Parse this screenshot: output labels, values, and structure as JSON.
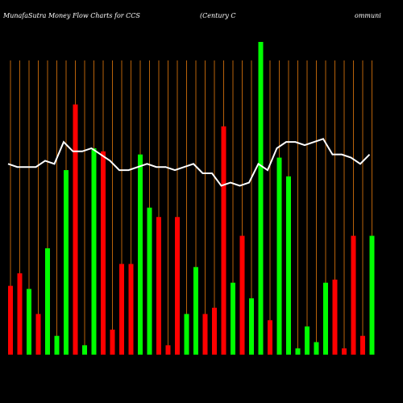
{
  "chart_data": {
    "type": "bar",
    "title": "MunafaSutra  Money Flow  Charts for CCS",
    "subtitle": "(Century C",
    "subtitle_tail": "ommuni",
    "values": [
      22,
      26,
      21,
      13,
      34,
      6,
      59,
      80,
      3,
      66,
      65,
      8,
      29,
      29,
      64,
      47,
      44,
      3,
      44,
      13,
      28,
      13,
      15,
      73,
      23,
      38,
      18,
      100,
      11,
      63,
      57,
      2,
      9,
      4,
      23,
      24,
      2,
      38,
      6,
      38
    ],
    "colors": [
      "#ff0000",
      "#ff0000",
      "#00ff00",
      "#ff0000",
      "#00ff00",
      "#00ff00",
      "#00ff00",
      "#ff0000",
      "#00ff00",
      "#00ff00",
      "#ff0000",
      "#ff0000",
      "#ff0000",
      "#ff0000",
      "#00ff00",
      "#00ff00",
      "#ff0000",
      "#ff0000",
      "#ff0000",
      "#00ff00",
      "#00ff00",
      "#ff0000",
      "#ff0000",
      "#ff0000",
      "#00ff00",
      "#ff0000",
      "#00ff00",
      "#00ff00",
      "#ff0000",
      "#00ff00",
      "#00ff00",
      "#00ff00",
      "#00ff00",
      "#00ff00",
      "#00ff00",
      "#ff0000",
      "#ff0000",
      "#ff0000",
      "#ff0000",
      "#00ff00"
    ],
    "line": {
      "color": "#ffffff",
      "values": [
        61,
        60,
        60,
        60,
        62,
        61,
        68,
        65,
        65,
        66,
        64,
        62,
        59,
        59,
        60,
        61,
        60,
        60,
        59,
        60,
        61,
        58,
        58,
        54,
        55,
        54,
        55,
        61,
        59,
        66,
        68,
        68,
        67,
        68,
        69,
        64,
        64,
        63,
        61,
        64
      ]
    },
    "ylim": [
      0,
      100
    ],
    "gridline_color": "#b8620a"
  }
}
